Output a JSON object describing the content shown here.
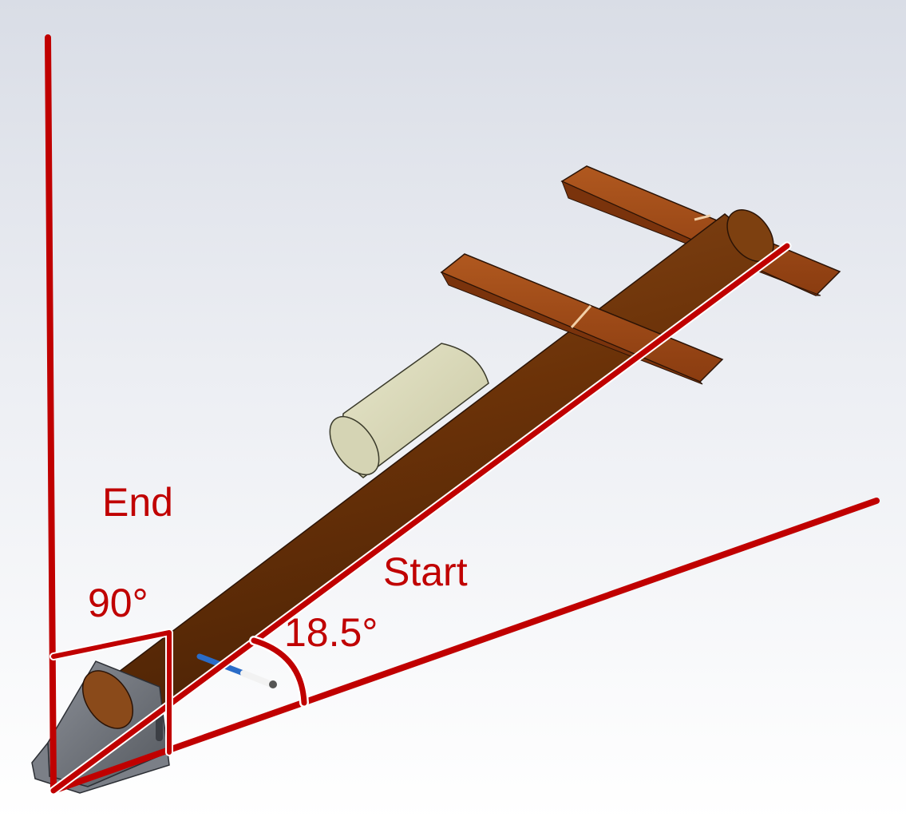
{
  "labels": {
    "end": "End",
    "start": "Start",
    "angle_right": "90°",
    "angle_launch": "18.5°"
  },
  "colors": {
    "annotation": "#c00000",
    "pipe": "#6b3208",
    "crossbar": "#9a4514",
    "cylinder": "#dddcbd",
    "bracket": "#6f737c",
    "rod": "#2a6cc8"
  }
}
